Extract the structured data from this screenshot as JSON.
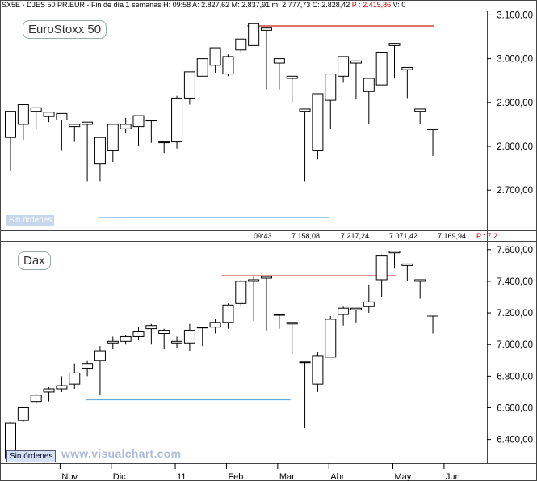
{
  "header_top": {
    "text": "SX5E - DJES 50 PR.EUR - Fin de día 1 semanas H: 09:58  A: 2.827,62  M: 2.837,91  m: 2.777,73  C: 2.828,42",
    "change": "P : 2.415,86",
    "volume": "V: 0"
  },
  "header_bottom": {
    "time": "09:43",
    "v1": "7.158,08",
    "v2": "7.217,24",
    "v3": "7.071,42",
    "v4": "7.169,94",
    "change": "P : 7.2"
  },
  "panel_top_label": "EuroStoxx 50",
  "panel_bottom_label": "Dax",
  "sin_ordenes": "Sin órdenes",
  "watermark": "www.visualchart.com",
  "colors": {
    "up_fill": "#ffffff",
    "down_fill": "#000000",
    "resistance": "#cc2222",
    "support": "#66aadd"
  },
  "chart_data": [
    {
      "type": "candlestick",
      "name": "EuroStoxx 50",
      "ylim": [
        2610,
        3110
      ],
      "yticks": [
        {
          "v": 2700,
          "t": "2.700,00"
        },
        {
          "v": 2800,
          "t": "2.800,00"
        },
        {
          "v": 2900,
          "t": "2.900,00"
        },
        {
          "v": 3000,
          "t": "3.000,00"
        },
        {
          "v": 3100,
          "t": "3.100,00"
        }
      ],
      "resistance": 3075,
      "support": 2638,
      "candles": [
        [
          2820,
          2880,
          2790,
          2745
        ],
        [
          2850,
          2895,
          2840,
          2815
        ],
        [
          2880,
          2888,
          2882,
          2840
        ],
        [
          2868,
          2878,
          2868,
          2855
        ],
        [
          2860,
          2875,
          2840,
          2790
        ],
        [
          2845,
          2850,
          2845,
          2810
        ],
        [
          2850,
          2855,
          2750,
          2720
        ],
        [
          2760,
          2820,
          2785,
          2720
        ],
        [
          2790,
          2850,
          2845,
          2765
        ],
        [
          2840,
          2850,
          2865,
          2830
        ],
        [
          2845,
          2870,
          2870,
          2800
        ],
        [
          2860,
          2858,
          2810,
          2808
        ],
        [
          2810,
          2810,
          2810,
          2785
        ],
        [
          2810,
          2910,
          2915,
          2795
        ],
        [
          2910,
          2970,
          2960,
          2895
        ],
        [
          2960,
          3000,
          2990,
          2960
        ],
        [
          2985,
          3025,
          2965,
          2968
        ],
        [
          2965,
          3005,
          3010,
          2960
        ],
        [
          3020,
          3045,
          3025,
          3015
        ],
        [
          3030,
          3080,
          3065,
          3050
        ],
        [
          3065,
          3070,
          2990,
          2930
        ],
        [
          2990,
          3000,
          2950,
          2930
        ],
        [
          2955,
          2960,
          2920,
          2900
        ],
        [
          2880,
          2885,
          2790,
          2720
        ],
        [
          2790,
          2920,
          2915,
          2770
        ],
        [
          2905,
          2965,
          2955,
          2840
        ],
        [
          2960,
          3005,
          2985,
          2945
        ],
        [
          2990,
          2995,
          2930,
          2908
        ],
        [
          2925,
          2955,
          2940,
          2850
        ],
        [
          2940,
          3015,
          3010,
          2940
        ],
        [
          3030,
          3035,
          2975,
          2955
        ],
        [
          2975,
          2980,
          2920,
          2910
        ],
        [
          2880,
          2885,
          2855,
          2850
        ],
        [
          2828,
          2838,
          2828,
          2778
        ]
      ]
    },
    {
      "type": "candlestick",
      "name": "Dax",
      "ylim": [
        6250,
        7650
      ],
      "yticks": [
        {
          "v": 6400,
          "t": "6.400,00"
        },
        {
          "v": 6600,
          "t": "6.600,00"
        },
        {
          "v": 6800,
          "t": "6.800,00"
        },
        {
          "v": 7000,
          "t": "7.000,00"
        },
        {
          "v": 7200,
          "t": "7.200,00"
        },
        {
          "v": 7400,
          "t": "7.400,00"
        },
        {
          "v": 7600,
          "t": "7.600,00"
        }
      ],
      "resistance": 7435,
      "support": 6652,
      "candles": [
        [
          6280,
          6505,
          6510,
          6270
        ],
        [
          6520,
          6600,
          6605,
          6510
        ],
        [
          6640,
          6680,
          6690,
          6625
        ],
        [
          6700,
          6720,
          6730,
          6640
        ],
        [
          6720,
          6740,
          6800,
          6700
        ],
        [
          6750,
          6820,
          6880,
          6720
        ],
        [
          6850,
          6880,
          6900,
          6800
        ],
        [
          6900,
          6960,
          6990,
          6680
        ],
        [
          7010,
          7020,
          7050,
          6970
        ],
        [
          7020,
          7050,
          7060,
          7000
        ],
        [
          7050,
          7080,
          7110,
          7030
        ],
        [
          7100,
          7120,
          7130,
          7000
        ],
        [
          7070,
          7090,
          7100,
          6970
        ],
        [
          7010,
          7020,
          7050,
          6980
        ],
        [
          7010,
          7090,
          7130,
          6960
        ],
        [
          7110,
          7110,
          7100,
          6990
        ],
        [
          7110,
          7140,
          7160,
          7070
        ],
        [
          7140,
          7250,
          7260,
          7100
        ],
        [
          7260,
          7400,
          7410,
          7240
        ],
        [
          7400,
          7410,
          7430,
          7150
        ],
        [
          7420,
          7430,
          7150,
          7090
        ],
        [
          7190,
          7190,
          7170,
          7100
        ],
        [
          7130,
          7140,
          6990,
          6940
        ],
        [
          6890,
          6890,
          6650,
          6470
        ],
        [
          6750,
          6930,
          6950,
          6700
        ],
        [
          6920,
          7160,
          7180,
          6920
        ],
        [
          7190,
          7230,
          7240,
          7120
        ],
        [
          7220,
          7230,
          7200,
          7140
        ],
        [
          7240,
          7270,
          7380,
          7200
        ],
        [
          7410,
          7560,
          7570,
          7300
        ],
        [
          7580,
          7590,
          7500,
          7480
        ],
        [
          7500,
          7510,
          7430,
          7400
        ],
        [
          7400,
          7410,
          7330,
          7290
        ],
        [
          7170,
          7180,
          7155,
          7070
        ]
      ]
    }
  ],
  "x_axis": [
    {
      "label": "Nov",
      "i": 4
    },
    {
      "label": "Dic",
      "i": 8
    },
    {
      "label": "11",
      "i": 13
    },
    {
      "label": "Feb",
      "i": 17
    },
    {
      "label": "Mar",
      "i": 21
    },
    {
      "label": "Abr",
      "i": 25
    },
    {
      "label": "May",
      "i": 30
    },
    {
      "label": "Jun",
      "i": 34
    }
  ]
}
